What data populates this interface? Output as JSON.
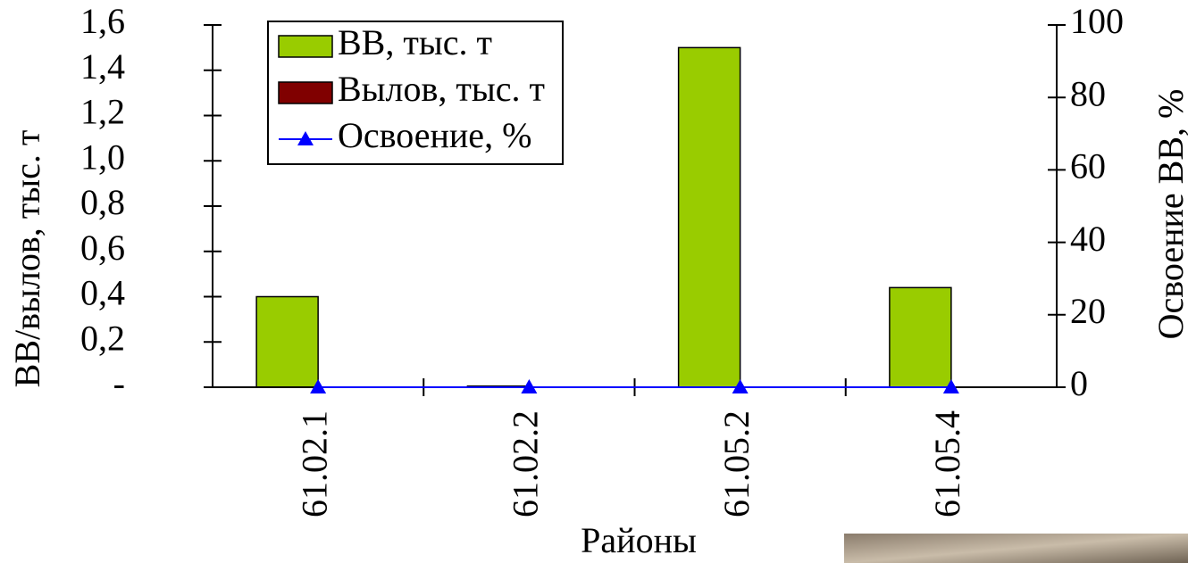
{
  "chart_data": {
    "type": "bar",
    "x_label": "Районы",
    "y_label": "ВВ/вылов, тыс. т",
    "y2_label": "Освоение ВВ, %",
    "categories": [
      "61.02.1",
      "61.02.2",
      "61.05.2",
      "61.05.4"
    ],
    "series": [
      {
        "name": "ВВ, тыс. т",
        "color": "#99cc00",
        "type": "bar",
        "values": [
          0.4,
          0.005,
          1.5,
          0.44
        ]
      },
      {
        "name": "Вылов, тыс. т",
        "color": "#800000",
        "type": "bar",
        "values": [
          0,
          0,
          0,
          0
        ]
      },
      {
        "name": "Освоение, %",
        "color": "#0000ff",
        "type": "line",
        "axis": "y2",
        "values": [
          0,
          0,
          0,
          0
        ]
      }
    ],
    "ylim": [
      0,
      1.6
    ],
    "yticks": [
      {
        "value": 0,
        "label": "-"
      },
      {
        "value": 0.2,
        "label": "0,2"
      },
      {
        "value": 0.4,
        "label": "0,4"
      },
      {
        "value": 0.6,
        "label": "0,6"
      },
      {
        "value": 0.8,
        "label": "0,8"
      },
      {
        "value": 1.0,
        "label": "1,0"
      },
      {
        "value": 1.2,
        "label": "1,2"
      },
      {
        "value": 1.4,
        "label": "1,4"
      },
      {
        "value": 1.6,
        "label": "1,6"
      }
    ],
    "y2lim": [
      0,
      100
    ],
    "y2ticks": [
      0,
      20,
      40,
      60,
      80,
      100
    ],
    "legend": "top-left"
  }
}
